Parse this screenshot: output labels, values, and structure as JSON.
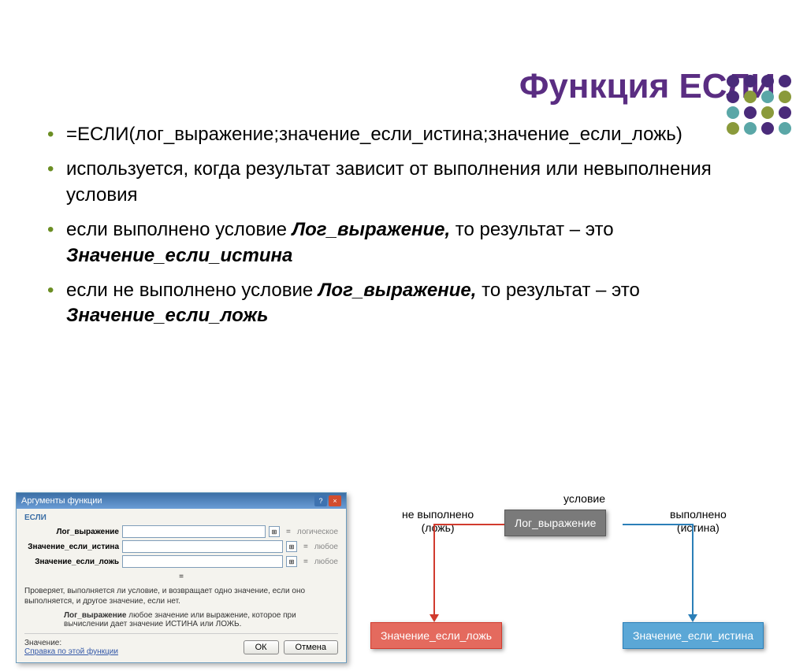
{
  "colors": {
    "title": "#5a2d82",
    "bullet": "#6b8e23",
    "syntax": "#6b8e23",
    "dot_purple": "#4a2b7a",
    "dot_olive": "#8a9a3b",
    "dot_teal": "#5aa7a7"
  },
  "dots": [
    [
      "dot_purple",
      "dot_purple",
      "dot_purple",
      "dot_purple"
    ],
    [
      "dot_purple",
      "dot_olive",
      "dot_teal",
      "dot_olive"
    ],
    [
      "dot_teal",
      "dot_purple",
      "dot_olive",
      "dot_purple"
    ],
    [
      "dot_olive",
      "dot_teal",
      "dot_purple",
      "dot_teal"
    ]
  ],
  "title": "Функция ЕСЛИ",
  "bullets": {
    "syntax": "=ЕСЛИ(лог_выражение;значение_если_истина;значение_если_ложь)",
    "b2": "используется, когда результат зависит от выполнения или невыполнения условия",
    "b3_pre": "если выполнено условие ",
    "b3_bi1": "Лог_выражение,",
    "b3_mid": " то результат – это ",
    "b3_bi2": "Значение_если_истина",
    "b4_pre": " если не выполнено условие ",
    "b4_bi1": "Лог_выражение,",
    "b4_mid": " то результат – это ",
    "b4_bi2": "Значение_если_ложь"
  },
  "dialog": {
    "title": "Аргументы функции",
    "fn": "ЕСЛИ",
    "rows": [
      {
        "label": "Лог_выражение",
        "hint": "логическое"
      },
      {
        "label": "Значение_если_истина",
        "hint": "любое"
      },
      {
        "label": "Значение_если_ложь",
        "hint": "любое"
      }
    ],
    "eq_line": "=",
    "desc": "Проверяет, выполняется ли условие, и возвращает одно значение, если оно выполняется, и другое значение, если нет.",
    "param_name": "Лог_выражение",
    "param_desc": "  любое значение или выражение, которое при вычислении дает значение ИСТИНА или ЛОЖЬ.",
    "value_label": "Значение:",
    "link": "Справка по этой функции",
    "ok": "ОК",
    "cancel": "Отмена"
  },
  "flowchart": {
    "top_label": "условие",
    "left_label_1": "не выполнено",
    "left_label_2": "(ложь)",
    "right_label_1": "выполнено",
    "right_label_2": "(истина)",
    "cond_box": "Лог_выражение",
    "false_box": "Значение_если_ложь",
    "true_box": "Значение_если_истина",
    "cond_bg": "#7a7a7a",
    "cond_border": "#5a5a5a",
    "false_color": "#d13b2e",
    "false_bg": "#e46a5e",
    "true_color": "#2b7fb8",
    "true_bg": "#5ba7d6"
  }
}
